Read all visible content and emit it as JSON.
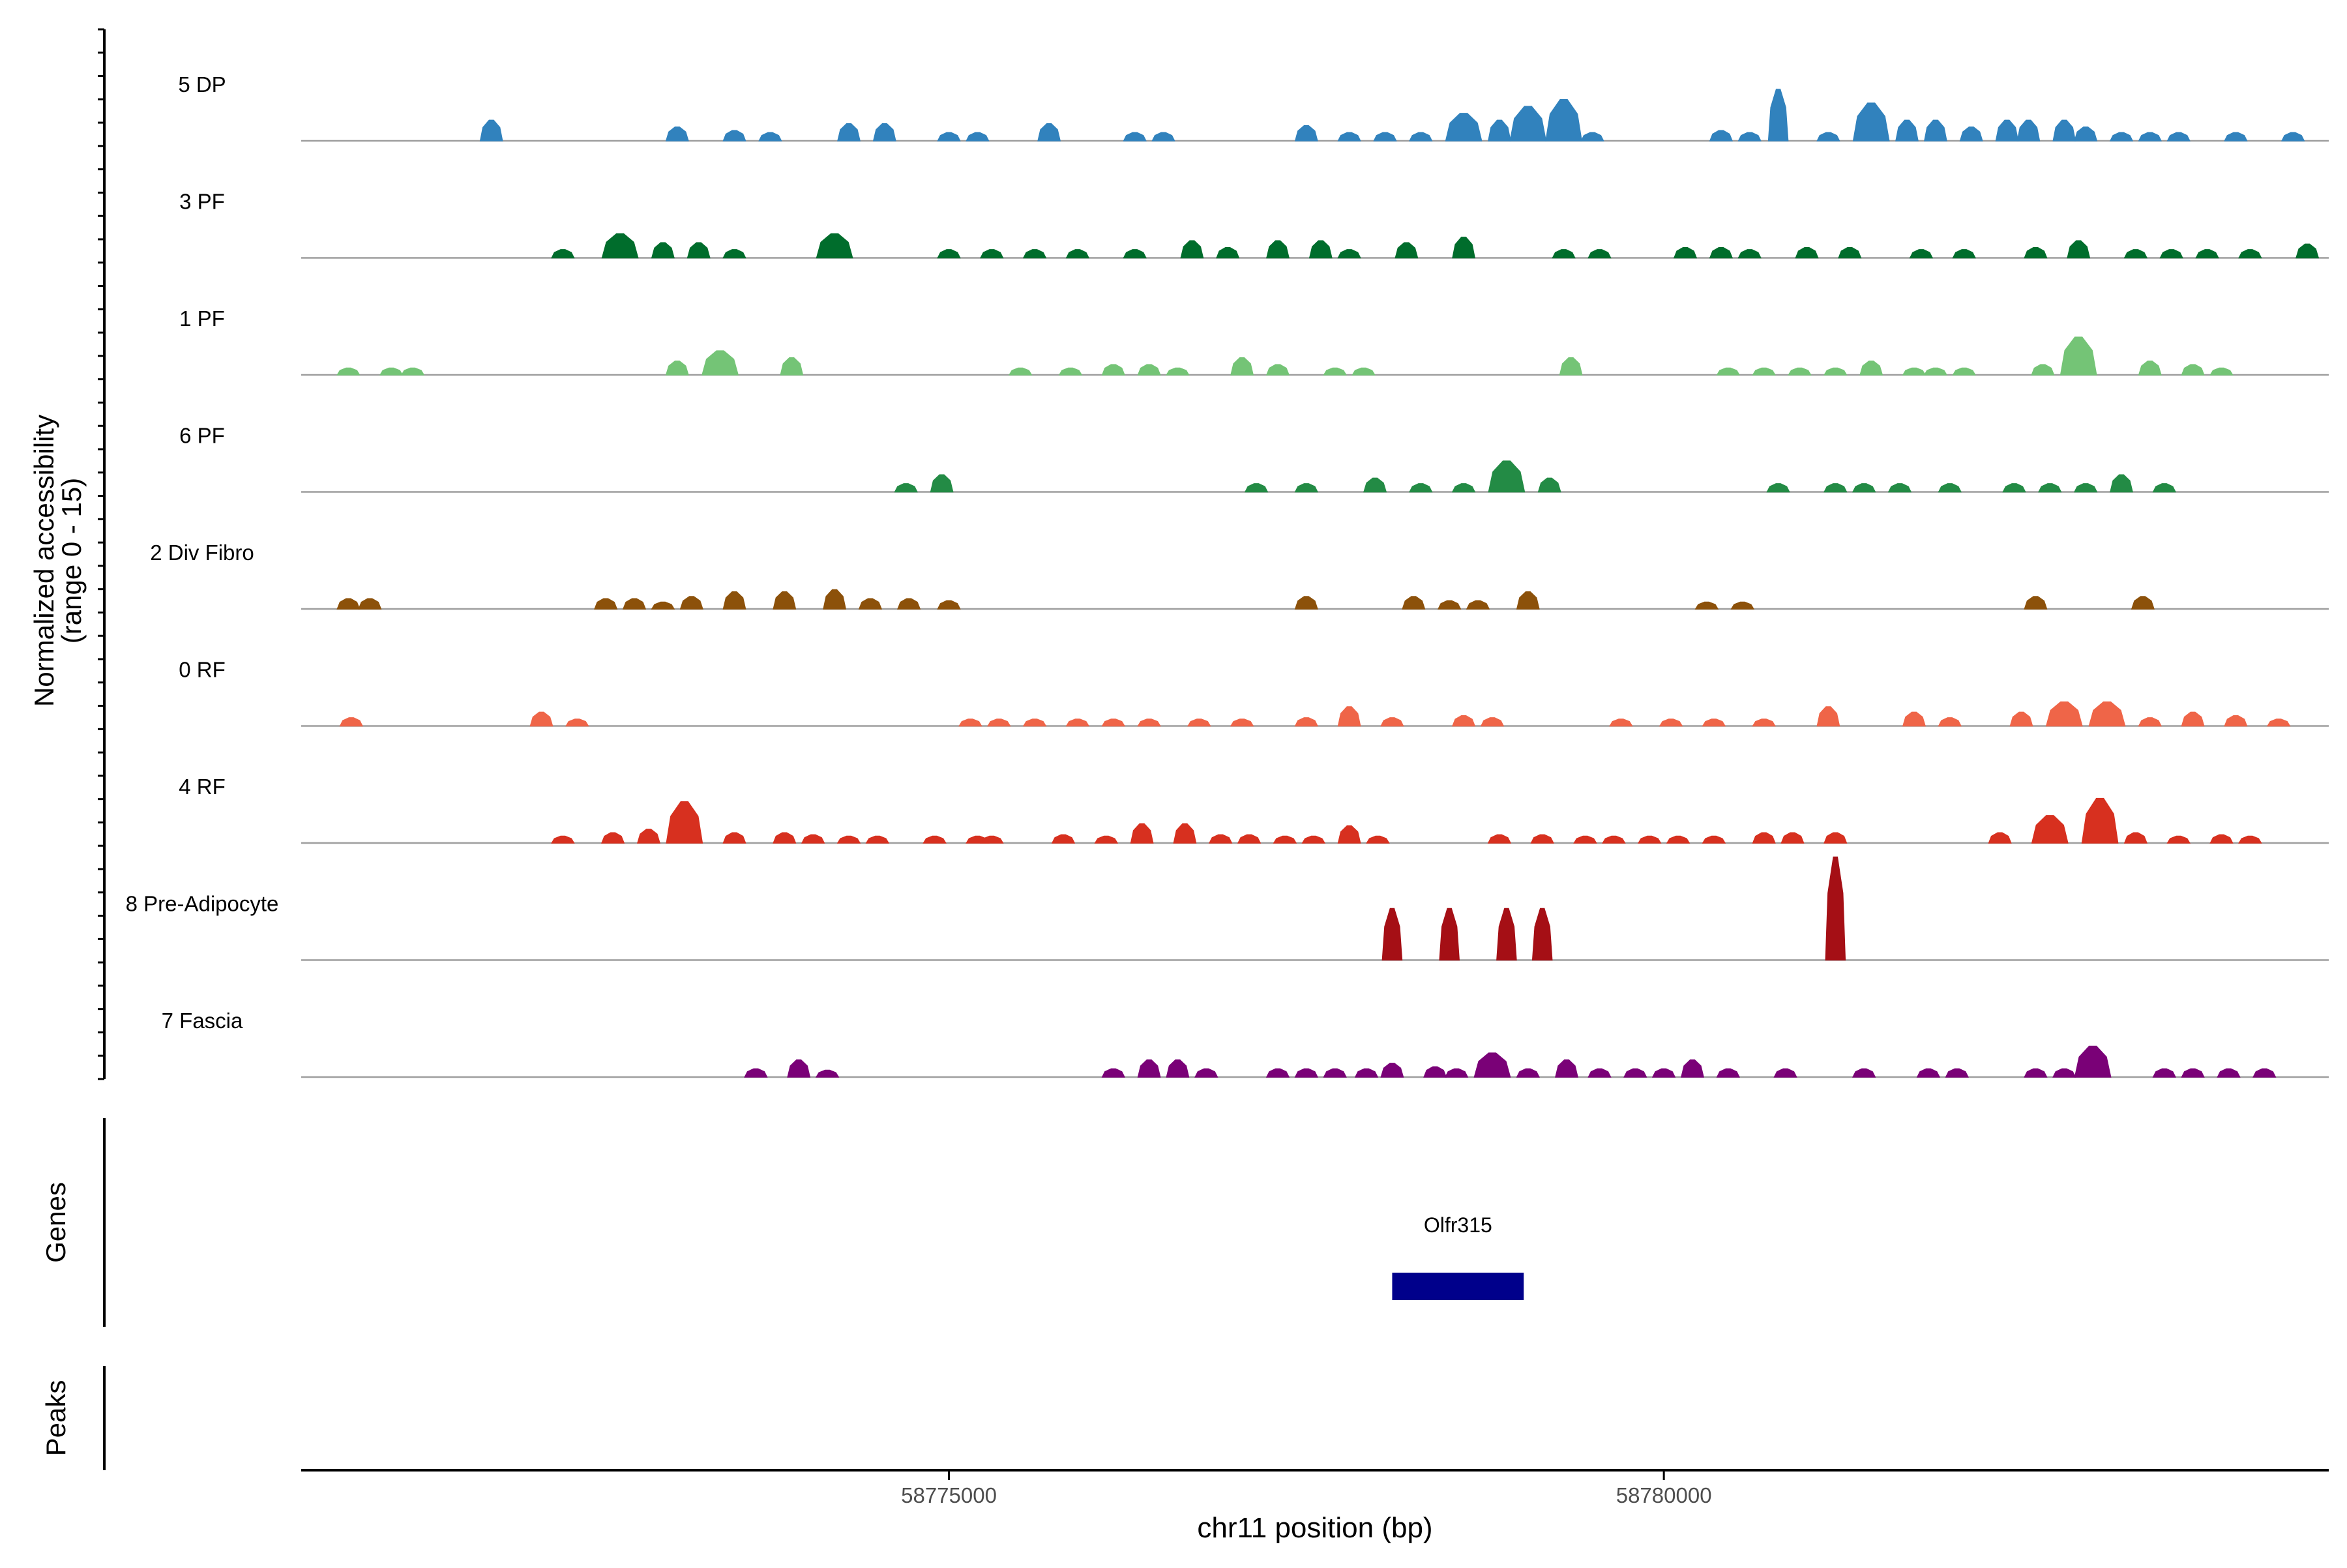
{
  "chart_data": {
    "type": "area",
    "ylabel": "Normalized accessibility\n(range 0 - 15)",
    "y_range_text": "(range 0 - 15)",
    "ylim": [
      0,
      15
    ],
    "xlabel": "chr11 position (bp)",
    "xlim": [
      58770470,
      58784650
    ],
    "x_ticks": [
      58775000,
      58780000
    ],
    "x_tick_labels": [
      "58775000",
      "58780000"
    ],
    "genes_label": "Genes",
    "peaks_label": "Peaks",
    "genes": [
      {
        "name": "Olfr315",
        "start": 58778100,
        "end": 58779020
      }
    ],
    "tracks": [
      {
        "name": "5 DP",
        "color": "#3182bd",
        "peaks": [
          [
            58771800,
            3
          ],
          [
            58773100,
            2
          ],
          [
            58773500,
            1.5
          ],
          [
            58773750,
            1.2
          ],
          [
            58774300,
            2.5
          ],
          [
            58774550,
            2.5
          ],
          [
            58775000,
            1.2
          ],
          [
            58775200,
            1.2
          ],
          [
            58775700,
            2.5
          ],
          [
            58776300,
            1.2
          ],
          [
            58776500,
            1.2
          ],
          [
            58777500,
            2.2
          ],
          [
            58777800,
            1.2
          ],
          [
            58778050,
            1.2
          ],
          [
            58778300,
            1.2
          ],
          [
            58778600,
            4
          ],
          [
            58778850,
            3
          ],
          [
            58779050,
            5
          ],
          [
            58779300,
            6
          ],
          [
            58779500,
            1.2
          ],
          [
            58780400,
            1.5
          ],
          [
            58780600,
            1.2
          ],
          [
            58780800,
            7.5
          ],
          [
            58781150,
            1.2
          ],
          [
            58781450,
            5.5
          ],
          [
            58781700,
            3
          ],
          [
            58781900,
            3
          ],
          [
            58782150,
            2
          ],
          [
            58782400,
            3
          ],
          [
            58782550,
            3
          ],
          [
            58782800,
            3
          ],
          [
            58782950,
            2
          ],
          [
            58783200,
            1.2
          ],
          [
            58783400,
            1.2
          ],
          [
            58783600,
            1.2
          ],
          [
            58784000,
            1.2
          ],
          [
            58784400,
            1.2
          ]
        ]
      },
      {
        "name": "3 PF",
        "color": "#006d2c",
        "peaks": [
          [
            58772300,
            1.2
          ],
          [
            58772700,
            3.5
          ],
          [
            58773000,
            2.2
          ],
          [
            58773250,
            2.2
          ],
          [
            58773500,
            1.2
          ],
          [
            58774200,
            3.5
          ],
          [
            58775000,
            1.2
          ],
          [
            58775300,
            1.2
          ],
          [
            58775600,
            1.2
          ],
          [
            58775900,
            1.2
          ],
          [
            58776300,
            1.2
          ],
          [
            58776700,
            2.5
          ],
          [
            58776950,
            1.5
          ],
          [
            58777300,
            2.5
          ],
          [
            58777600,
            2.5
          ],
          [
            58777800,
            1.2
          ],
          [
            58778200,
            2.2
          ],
          [
            58778600,
            3
          ],
          [
            58779300,
            1.2
          ],
          [
            58779550,
            1.2
          ],
          [
            58780150,
            1.5
          ],
          [
            58780400,
            1.5
          ],
          [
            58780600,
            1.2
          ],
          [
            58781000,
            1.5
          ],
          [
            58781300,
            1.5
          ],
          [
            58781800,
            1.2
          ],
          [
            58782100,
            1.2
          ],
          [
            58782600,
            1.5
          ],
          [
            58782900,
            2.5
          ],
          [
            58783300,
            1.2
          ],
          [
            58783550,
            1.2
          ],
          [
            58783800,
            1.2
          ],
          [
            58784100,
            1.2
          ],
          [
            58784500,
            2
          ]
        ]
      },
      {
        "name": "1 PF",
        "color": "#74c476",
        "peaks": [
          [
            58770800,
            1
          ],
          [
            58771100,
            1
          ],
          [
            58771250,
            1
          ],
          [
            58773100,
            2
          ],
          [
            58773400,
            3.5
          ],
          [
            58773900,
            2.5
          ],
          [
            58775500,
            1
          ],
          [
            58775850,
            1
          ],
          [
            58776150,
            1.5
          ],
          [
            58776400,
            1.5
          ],
          [
            58776600,
            1
          ],
          [
            58777050,
            2.5
          ],
          [
            58777300,
            1.5
          ],
          [
            58777700,
            1
          ],
          [
            58777900,
            1
          ],
          [
            58779350,
            2.5
          ],
          [
            58780450,
            1
          ],
          [
            58780700,
            1
          ],
          [
            58780950,
            1
          ],
          [
            58781200,
            1
          ],
          [
            58781450,
            2
          ],
          [
            58781750,
            1
          ],
          [
            58781900,
            1
          ],
          [
            58782100,
            1
          ],
          [
            58782650,
            1.5
          ],
          [
            58782900,
            5.5
          ],
          [
            58783400,
            2
          ],
          [
            58783700,
            1.5
          ],
          [
            58783900,
            1
          ]
        ]
      },
      {
        "name": "6 PF",
        "color": "#238b45",
        "peaks": [
          [
            58774700,
            1.2
          ],
          [
            58774950,
            2.5
          ],
          [
            58777150,
            1.2
          ],
          [
            58777500,
            1.2
          ],
          [
            58777980,
            2
          ],
          [
            58778300,
            1.2
          ],
          [
            58778600,
            1.2
          ],
          [
            58778900,
            4.5
          ],
          [
            58779200,
            2
          ],
          [
            58780800,
            1.2
          ],
          [
            58781200,
            1.2
          ],
          [
            58781400,
            1.2
          ],
          [
            58781650,
            1.2
          ],
          [
            58782000,
            1.2
          ],
          [
            58782450,
            1.2
          ],
          [
            58782700,
            1.2
          ],
          [
            58782950,
            1.2
          ],
          [
            58783200,
            2.5
          ],
          [
            58783500,
            1.2
          ]
        ]
      },
      {
        "name": "2 Div Fibro",
        "color": "#8c510a",
        "peaks": [
          [
            58770800,
            1.5
          ],
          [
            58770950,
            1.5
          ],
          [
            58772600,
            1.5
          ],
          [
            58772800,
            1.5
          ],
          [
            58773000,
            1
          ],
          [
            58773200,
            1.8
          ],
          [
            58773500,
            2.5
          ],
          [
            58773850,
            2.5
          ],
          [
            58774200,
            2.8
          ],
          [
            58774450,
            1.5
          ],
          [
            58774720,
            1.5
          ],
          [
            58775000,
            1.2
          ],
          [
            58777500,
            1.8
          ],
          [
            58778250,
            1.8
          ],
          [
            58778500,
            1.2
          ],
          [
            58778700,
            1.2
          ],
          [
            58779050,
            2.5
          ],
          [
            58780300,
            1
          ],
          [
            58780550,
            1
          ],
          [
            58782600,
            1.8
          ],
          [
            58783350,
            1.8
          ]
        ]
      },
      {
        "name": "0 RF",
        "color": "#ef6548",
        "peaks": [
          [
            58770820,
            1.2
          ],
          [
            58772150,
            2
          ],
          [
            58772400,
            1
          ],
          [
            58775150,
            1
          ],
          [
            58775350,
            1
          ],
          [
            58775600,
            1
          ],
          [
            58775900,
            1
          ],
          [
            58776150,
            1
          ],
          [
            58776400,
            1
          ],
          [
            58776750,
            1
          ],
          [
            58777050,
            1
          ],
          [
            58777500,
            1.2
          ],
          [
            58777800,
            2.8
          ],
          [
            58778100,
            1.2
          ],
          [
            58778600,
            1.5
          ],
          [
            58778800,
            1.2
          ],
          [
            58779700,
            1
          ],
          [
            58780050,
            1
          ],
          [
            58780350,
            1
          ],
          [
            58780700,
            1
          ],
          [
            58781150,
            2.8
          ],
          [
            58781750,
            2
          ],
          [
            58782000,
            1.2
          ],
          [
            58782500,
            2
          ],
          [
            58782800,
            3.5
          ],
          [
            58783100,
            3.5
          ],
          [
            58783400,
            1.2
          ],
          [
            58783700,
            2
          ],
          [
            58784000,
            1.5
          ],
          [
            58784300,
            1
          ]
        ]
      },
      {
        "name": "4 RF",
        "color": "#d7301f",
        "peaks": [
          [
            58772300,
            1
          ],
          [
            58772650,
            1.5
          ],
          [
            58772900,
            2
          ],
          [
            58773150,
            6
          ],
          [
            58773500,
            1.5
          ],
          [
            58773850,
            1.5
          ],
          [
            58774050,
            1.2
          ],
          [
            58774300,
            1
          ],
          [
            58774500,
            1
          ],
          [
            58774900,
            1
          ],
          [
            58775200,
            1
          ],
          [
            58775300,
            1
          ],
          [
            58775800,
            1.2
          ],
          [
            58776100,
            1
          ],
          [
            58776350,
            2.8
          ],
          [
            58776650,
            2.8
          ],
          [
            58776900,
            1.2
          ],
          [
            58777100,
            1.2
          ],
          [
            58777350,
            1
          ],
          [
            58777550,
            1
          ],
          [
            58777800,
            2.5
          ],
          [
            58778000,
            1
          ],
          [
            58778850,
            1.2
          ],
          [
            58779150,
            1.2
          ],
          [
            58779450,
            1
          ],
          [
            58779650,
            1
          ],
          [
            58779900,
            1
          ],
          [
            58780100,
            1
          ],
          [
            58780350,
            1
          ],
          [
            58780700,
            1.5
          ],
          [
            58780900,
            1.5
          ],
          [
            58781200,
            1.5
          ],
          [
            58782350,
            1.5
          ],
          [
            58782700,
            4
          ],
          [
            58783050,
            6.5
          ],
          [
            58783300,
            1.5
          ],
          [
            58783600,
            1
          ],
          [
            58783900,
            1.2
          ],
          [
            58784100,
            1
          ]
        ]
      },
      {
        "name": "8 Pre-Adipocyte",
        "color": "#a50f15",
        "peaks": [
          [
            58778100,
            7.5
          ],
          [
            58778500,
            7.5
          ],
          [
            58778900,
            7.5
          ],
          [
            58779150,
            7.5
          ],
          [
            58781200,
            15
          ]
        ]
      },
      {
        "name": "7 Fascia",
        "color": "#7a0177",
        "peaks": [
          [
            58773650,
            1.2
          ],
          [
            58773950,
            2.5
          ],
          [
            58774150,
            1
          ],
          [
            58776150,
            1.2
          ],
          [
            58776400,
            2.5
          ],
          [
            58776600,
            2.5
          ],
          [
            58776800,
            1.2
          ],
          [
            58777300,
            1.2
          ],
          [
            58777500,
            1.2
          ],
          [
            58777700,
            1.2
          ],
          [
            58777920,
            1.2
          ],
          [
            58778100,
            2
          ],
          [
            58778400,
            1.5
          ],
          [
            58778550,
            1.2
          ],
          [
            58778800,
            3.5
          ],
          [
            58779050,
            1.2
          ],
          [
            58779320,
            2.5
          ],
          [
            58779550,
            1.2
          ],
          [
            58779800,
            1.2
          ],
          [
            58780000,
            1.2
          ],
          [
            58780200,
            2.5
          ],
          [
            58780450,
            1.2
          ],
          [
            58780850,
            1.2
          ],
          [
            58781400,
            1.2
          ],
          [
            58781850,
            1.2
          ],
          [
            58782050,
            1.2
          ],
          [
            58782600,
            1.2
          ],
          [
            58782800,
            1.2
          ],
          [
            58783000,
            4.5
          ],
          [
            58783500,
            1.2
          ],
          [
            58783700,
            1.2
          ],
          [
            58783950,
            1.2
          ],
          [
            58784200,
            1.2
          ]
        ]
      }
    ]
  }
}
